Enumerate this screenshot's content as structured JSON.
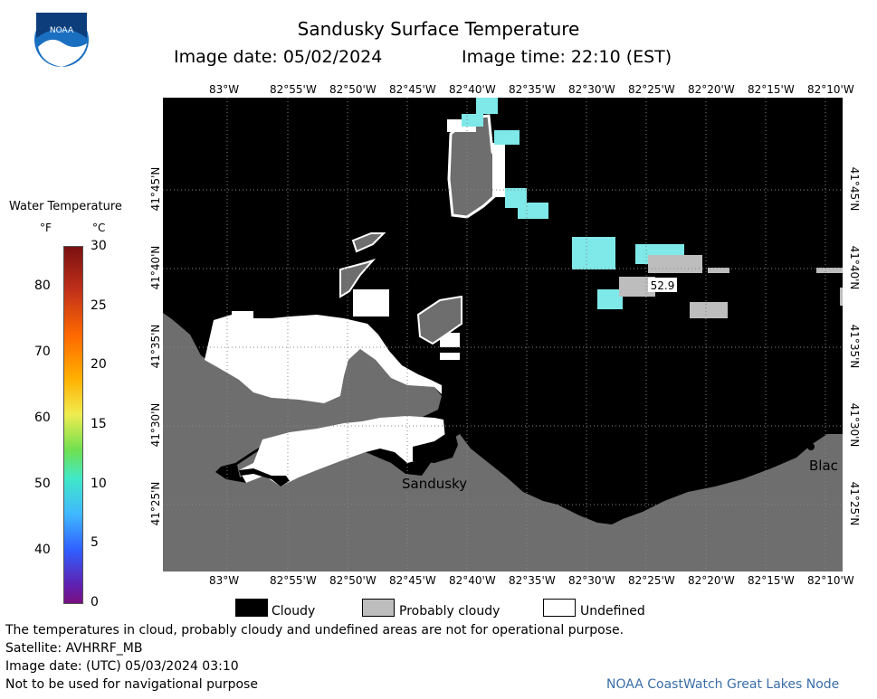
{
  "header": {
    "title": "Sandusky Surface Temperature",
    "image_date_label": "Image date: 05/02/2024",
    "image_time_label": "Image time: 22:10 (EST)"
  },
  "colorbar": {
    "title": "Water Temperature",
    "unit_f": "°F",
    "unit_c": "°C",
    "f_ticks": [
      "80",
      "70",
      "60",
      "50",
      "40"
    ],
    "c_ticks": [
      "30",
      "25",
      "20",
      "15",
      "10",
      "5",
      "0"
    ]
  },
  "map": {
    "lon_ticks": [
      "83°W",
      "82°55'W",
      "82°50'W",
      "82°45'W",
      "82°40'W",
      "82°35'W",
      "82°30'W",
      "82°25'W",
      "82°20'W",
      "82°15'W",
      "82°10'W"
    ],
    "lat_ticks": [
      "41°45'N",
      "41°40'N",
      "41°35'N",
      "41°30'N",
      "41°25'N"
    ],
    "place_sandusky": "Sandusky",
    "place_blac": "Blac",
    "value_label": "52.9"
  },
  "legend": {
    "cloudy": "Cloudy",
    "probably_cloudy": "Probably cloudy",
    "undefined": "Undefined"
  },
  "footer": {
    "line1": "The temperatures in cloud, probably cloudy and undefined areas are not for operational purpose.",
    "line2": "Satellite: AVHRRF_MB",
    "line3": "Image date: (UTC) 05/03/2024  03:10",
    "line4": "Not to be used for navigational purpose",
    "credit": "NOAA CoastWatch Great Lakes Node"
  },
  "colors": {
    "land": "#6e6e6e",
    "cloudy": "#000000",
    "probably_cloudy": "#bdbdbd",
    "undefined": "#ffffff",
    "water_cyan": "#7fe8e8"
  }
}
